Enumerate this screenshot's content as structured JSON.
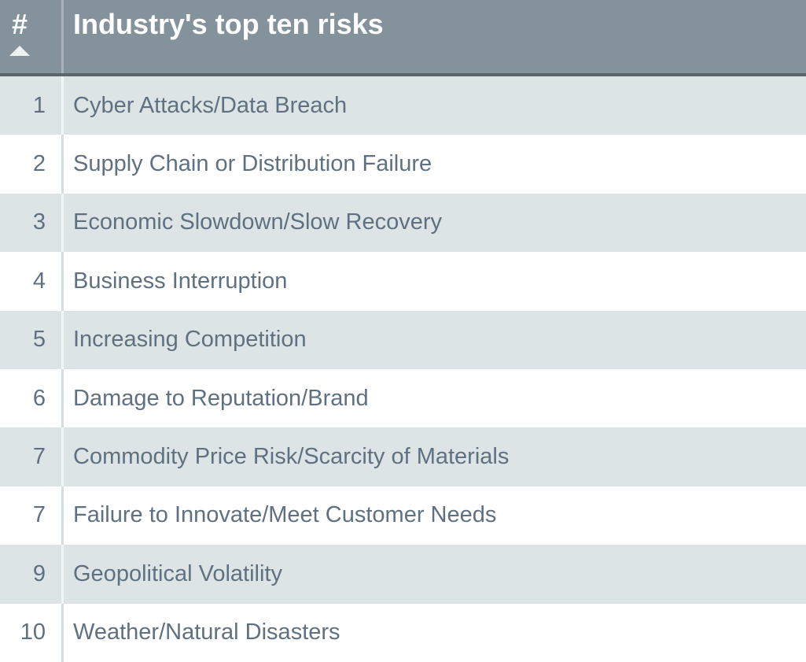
{
  "table": {
    "header": {
      "rank_label": "#",
      "title": "Industry's top ten risks",
      "sort_icon": "sort-ascending-triangle",
      "sort_state": "ascending"
    },
    "rows": [
      {
        "rank": "1",
        "risk": "Cyber Attacks/Data Breach"
      },
      {
        "rank": "2",
        "risk": "Supply Chain or Distribution Failure"
      },
      {
        "rank": "3",
        "risk": "Economic Slowdown/Slow Recovery"
      },
      {
        "rank": "4",
        "risk": "Business Interruption"
      },
      {
        "rank": "5",
        "risk": "Increasing Competition"
      },
      {
        "rank": "6",
        "risk": "Damage to Reputation/Brand"
      },
      {
        "rank": "7",
        "risk": "Commodity Price Risk/Scarcity of Materials"
      },
      {
        "rank": "7",
        "risk": "Failure to Innovate/Meet Customer Needs"
      },
      {
        "rank": "9",
        "risk": "Geopolitical Volatility"
      },
      {
        "rank": "10",
        "risk": "Weather/Natural Disasters"
      }
    ]
  },
  "colors": {
    "header_bg": "#84939B",
    "header_text": "#FFFFFF",
    "header_border_bottom": "#5A656C",
    "divider_header": "#A8B2B8",
    "row_shaded_bg": "#DDE4E6",
    "row_white_bg": "#FFFFFF",
    "row_text": "#5F7181",
    "divider_shaded": "#F2F6F7",
    "divider_white": "#D4DEE1",
    "sort_arrow": "#EEF2F3"
  }
}
